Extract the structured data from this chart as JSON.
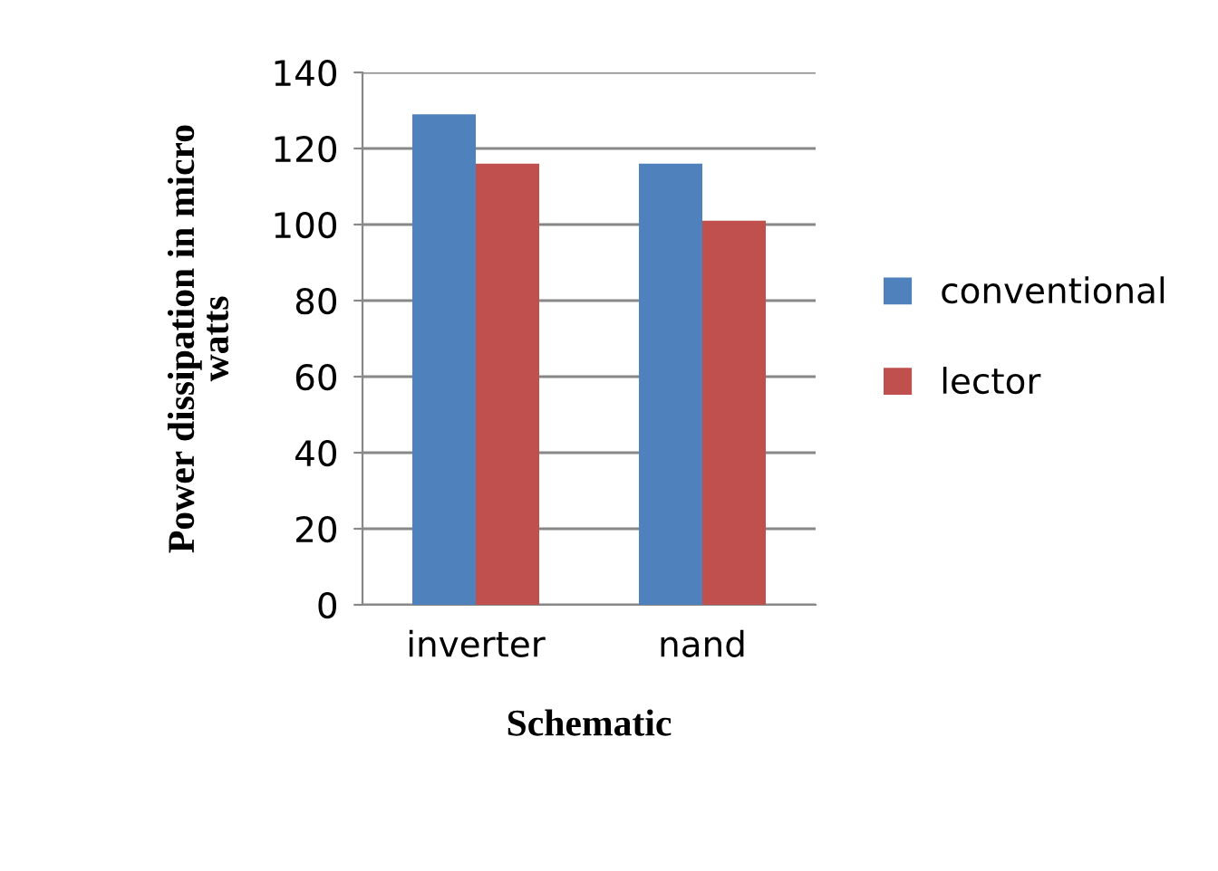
{
  "chart_data": {
    "type": "bar",
    "xlabel": "Schematic",
    "ylabel": "Power dissipation in micro\nwatts",
    "categories": [
      "inverter",
      "nand"
    ],
    "series": [
      {
        "name": "conventional",
        "color": "#4f81bd",
        "values": [
          129,
          116
        ]
      },
      {
        "name": "lector",
        "color": "#c0504d",
        "values": [
          116,
          101
        ]
      }
    ],
    "ylim": [
      0,
      140
    ],
    "yticks": [
      0,
      20,
      40,
      60,
      80,
      100,
      120,
      140
    ],
    "grid": "y",
    "legend": "right"
  }
}
